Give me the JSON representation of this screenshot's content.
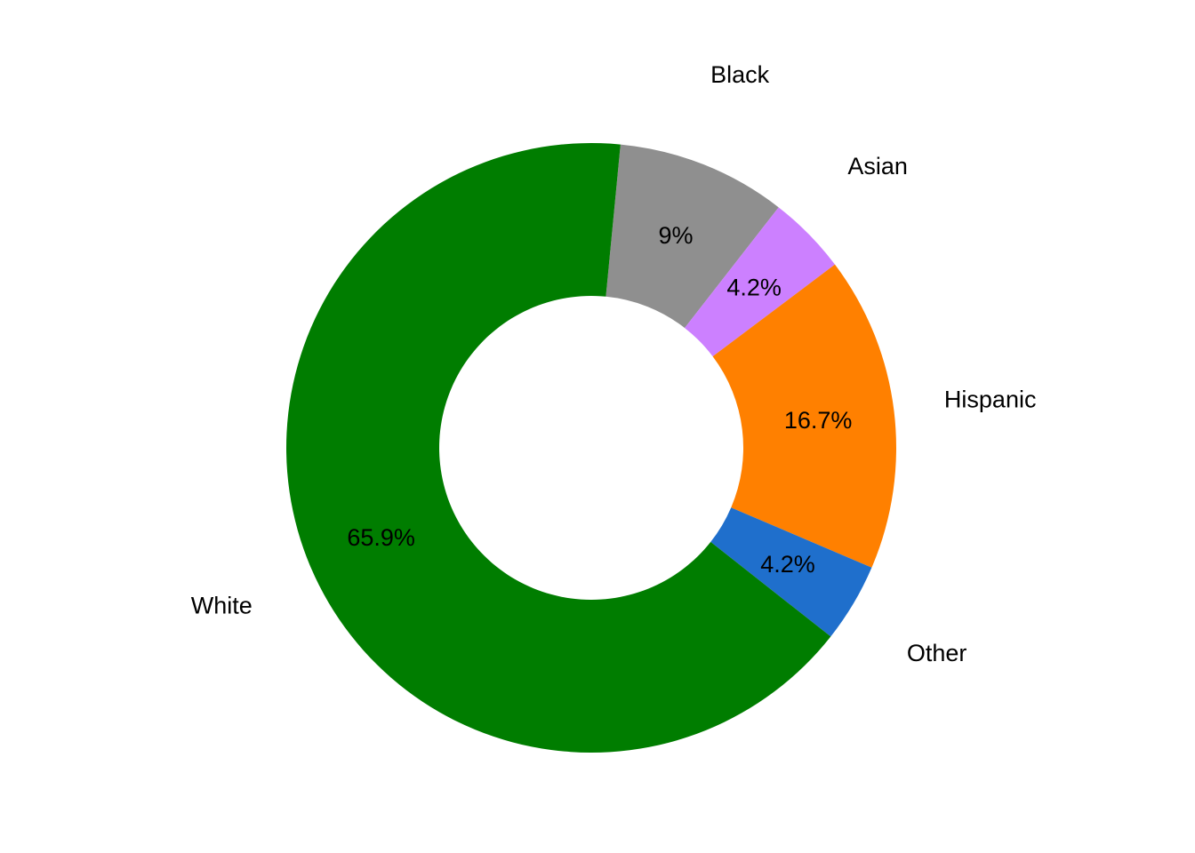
{
  "chart_data": {
    "type": "pie",
    "donut": true,
    "title": "",
    "legend": "none",
    "slices": [
      {
        "name": "Black",
        "value": 9.0,
        "value_label": "9%",
        "color": "#8f8f8f"
      },
      {
        "name": "Asian",
        "value": 4.2,
        "value_label": "4.2%",
        "color": "#cc80ff"
      },
      {
        "name": "Hispanic",
        "value": 16.7,
        "value_label": "16.7%",
        "color": "#ff8000"
      },
      {
        "name": "Other",
        "value": 4.2,
        "value_label": "4.2%",
        "color": "#1f6fcc"
      },
      {
        "name": "White",
        "value": 65.9,
        "value_label": "65.9%",
        "color": "#007d00"
      }
    ]
  }
}
